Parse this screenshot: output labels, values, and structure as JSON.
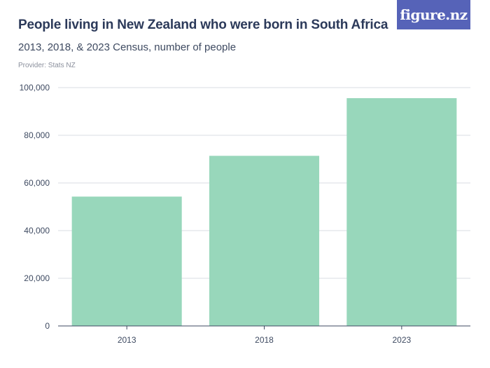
{
  "header": {
    "title": "People living in New Zealand who were born in South Africa",
    "subtitle": "2013, 2018, & 2023 Census, number of people",
    "provider": "Provider: Stats NZ",
    "logo_text": "figure.nz"
  },
  "colors": {
    "bar": "#98d7bb",
    "grid": "#d9dce3",
    "axis": "#3e4a61",
    "logo_bg": "#5663b8"
  },
  "chart_data": {
    "type": "bar",
    "title": "People living in New Zealand who were born in South Africa",
    "subtitle": "2013, 2018, & 2023 Census, number of people",
    "xlabel": "",
    "ylabel": "",
    "categories": [
      "2013",
      "2018",
      "2023"
    ],
    "values": [
      54276,
      71382,
      95577
    ],
    "ylim": [
      0,
      100000
    ],
    "yticks": [
      0,
      20000,
      40000,
      60000,
      80000,
      100000
    ],
    "ytick_labels": [
      "0",
      "20,000",
      "40,000",
      "60,000",
      "80,000",
      "100,000"
    ],
    "grid": true,
    "legend": "none"
  }
}
